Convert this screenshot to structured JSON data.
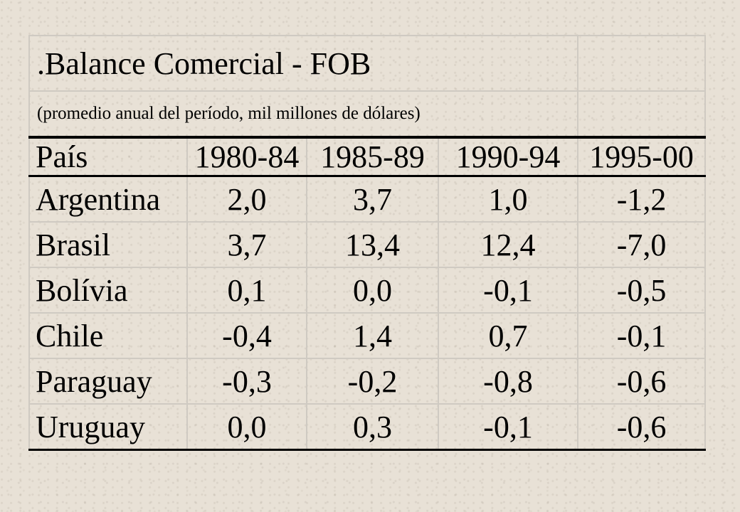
{
  "title": ".Balance Comercial - FOB",
  "subtitle": "(promedio anual del período, mil millones de dólares)",
  "columns": [
    "País",
    "1980-84",
    "1985-89",
    "1990-94",
    "1995-00"
  ],
  "rows": [
    {
      "country": "Argentina",
      "values": [
        "2,0",
        "3,7",
        "1,0",
        "-1,2"
      ]
    },
    {
      "country": "Brasil",
      "values": [
        "3,7",
        "13,4",
        "12,4",
        "-7,0"
      ]
    },
    {
      "country": "Bolívia",
      "values": [
        "0,1",
        "0,0",
        "-0,1",
        "-0,5"
      ]
    },
    {
      "country": "Chile",
      "values": [
        "-0,4",
        "1,4",
        "0,7",
        "-0,1"
      ]
    },
    {
      "country": "Paraguay",
      "values": [
        "-0,3",
        "-0,2",
        "-0,8",
        "-0,6"
      ]
    },
    {
      "country": "Uruguay",
      "values": [
        "0,0",
        "0,3",
        "-0,1",
        "-0,6"
      ]
    }
  ]
}
